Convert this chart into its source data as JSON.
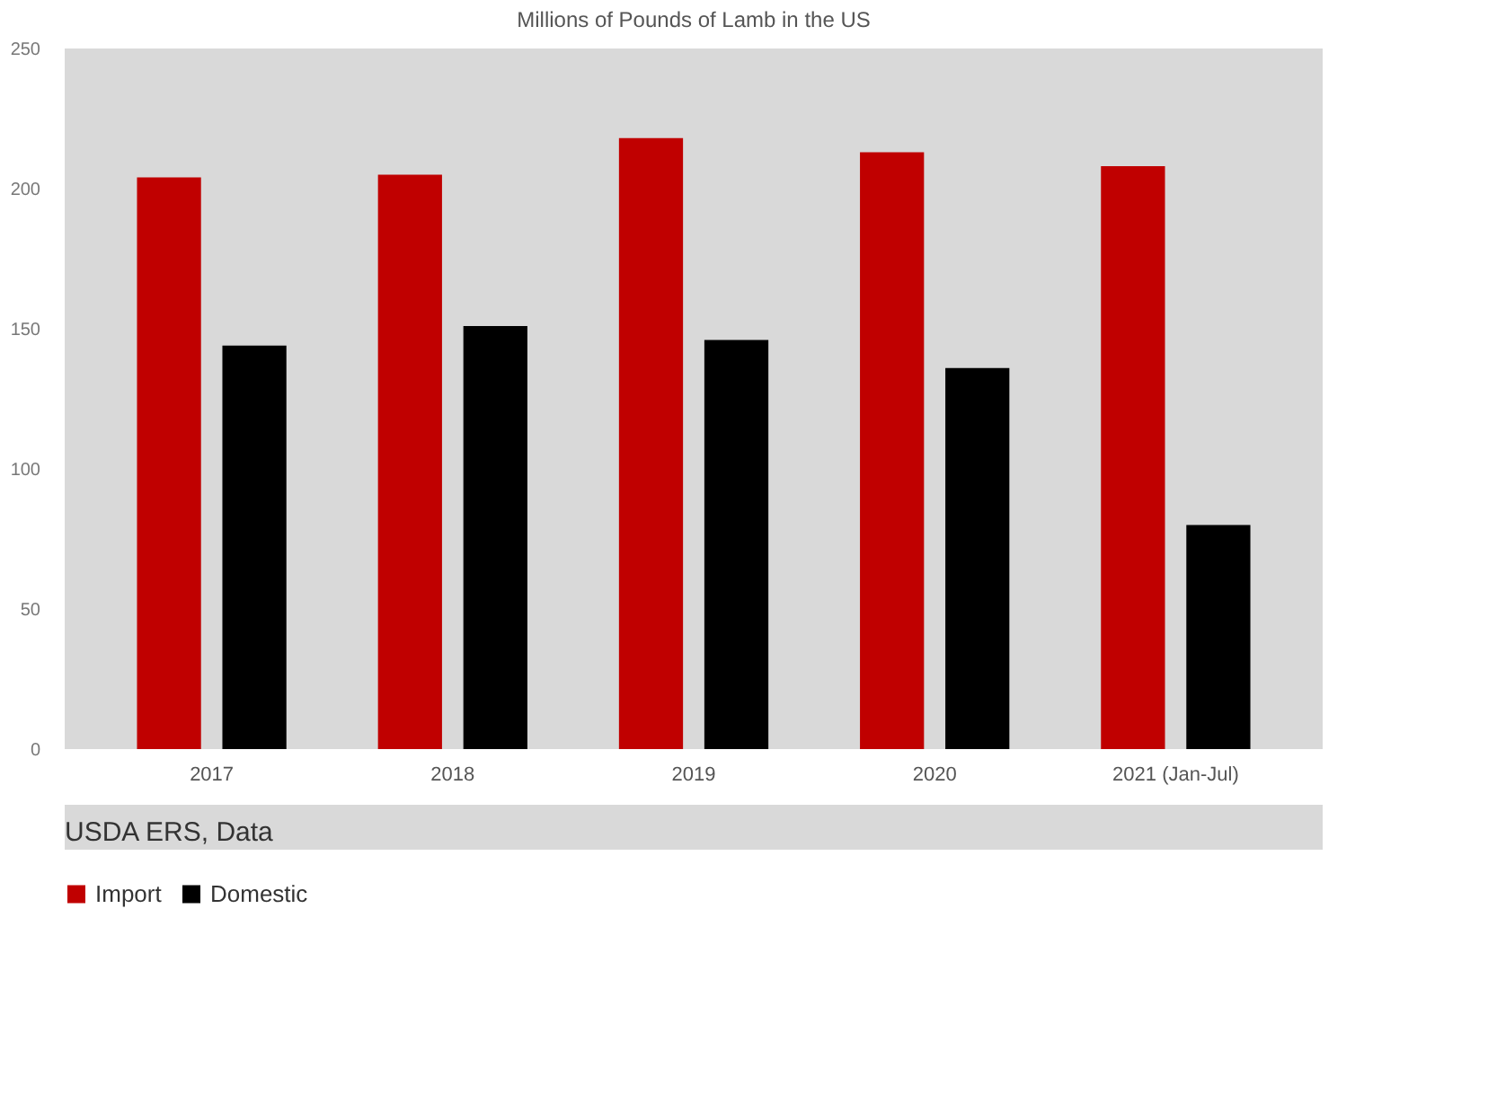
{
  "chart_data": {
    "type": "bar",
    "title": "Millions of Pounds of Lamb in the US",
    "categories": [
      "2017",
      "2018",
      "2019",
      "2020",
      "2021 (Jan-Jul)"
    ],
    "series": [
      {
        "name": "Import",
        "color": "#c00000",
        "values": [
          204,
          205,
          218,
          213,
          208
        ]
      },
      {
        "name": "Domestic",
        "color": "#000000",
        "values": [
          144,
          151,
          146,
          136,
          80
        ]
      }
    ],
    "ylim": [
      0,
      250
    ],
    "yticks": [
      0,
      50,
      100,
      150,
      200,
      250
    ],
    "grid": false,
    "legend": "bottom",
    "annotations": [
      "USDA ERS, Data"
    ]
  }
}
